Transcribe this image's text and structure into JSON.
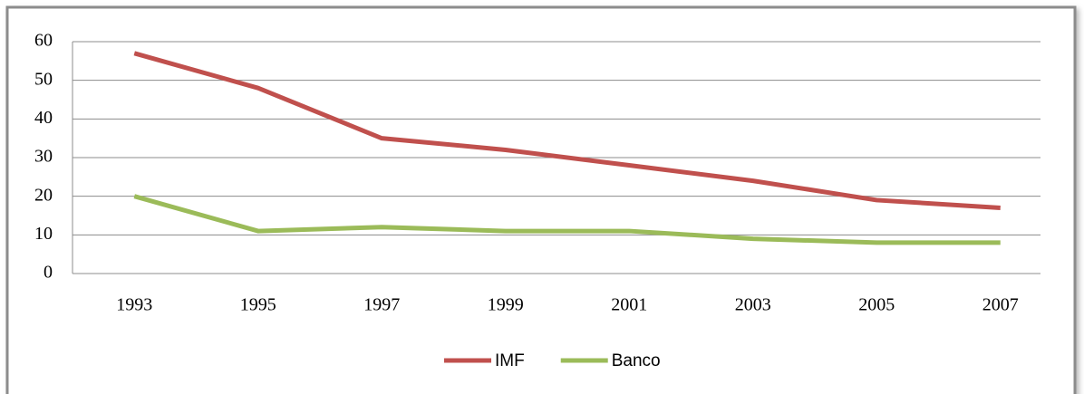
{
  "chart_data": {
    "type": "line",
    "categories": [
      "1993",
      "1995",
      "1997",
      "1999",
      "2001",
      "2003",
      "2005",
      "2007"
    ],
    "series": [
      {
        "name": "IMF",
        "color": "#c0504d",
        "values": [
          57,
          48,
          35,
          32,
          28,
          24,
          19,
          17
        ]
      },
      {
        "name": "Banco",
        "color": "#9bbb59",
        "values": [
          20,
          11,
          12,
          11,
          11,
          9,
          8,
          8
        ]
      }
    ],
    "ylim": [
      0,
      60
    ],
    "yticks": [
      0,
      10,
      20,
      30,
      40,
      50,
      60
    ],
    "grid": true,
    "legend": "bottom"
  }
}
